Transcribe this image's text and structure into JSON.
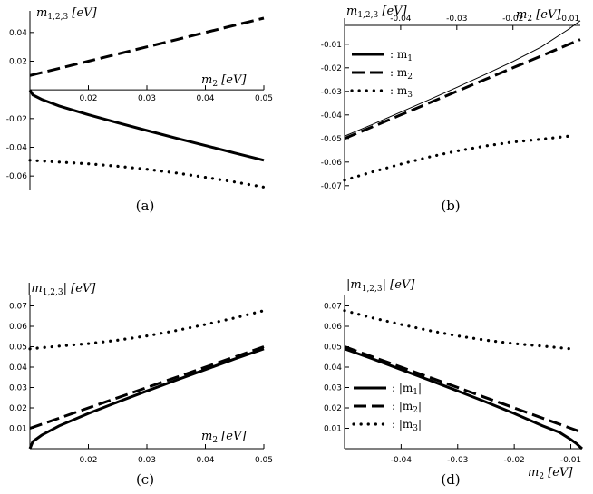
{
  "chart_data": [
    {
      "type": "line",
      "panel": "a",
      "caption": "(a)",
      "ylabel": "m_{1,2,3} [eV]",
      "xlabel": "m_2 [eV]",
      "xlim": [
        0.01,
        0.05
      ],
      "ylim": [
        -0.07,
        0.05
      ],
      "xticks": [
        "0.02",
        "0.03",
        "0.04",
        "0.05"
      ],
      "yticks": [
        "0.04",
        "0.02",
        "-0.02",
        "-0.04",
        "-0.06"
      ],
      "series": [
        {
          "style": "dashed",
          "x": [
            0.01,
            0.015,
            0.02,
            0.025,
            0.03,
            0.035,
            0.04,
            0.045,
            0.05
          ],
          "y": [
            0.01,
            0.015,
            0.02,
            0.025,
            0.03,
            0.035,
            0.04,
            0.045,
            0.05
          ]
        },
        {
          "style": "solid",
          "x": [
            0.01,
            0.0105,
            0.012,
            0.015,
            0.02,
            0.025,
            0.03,
            0.035,
            0.04,
            0.045,
            0.05
          ],
          "y": [
            0.0,
            -0.0035,
            -0.0066,
            -0.0112,
            -0.0173,
            -0.0229,
            -0.0283,
            -0.0336,
            -0.0388,
            -0.044,
            -0.049
          ]
        },
        {
          "style": "dotted",
          "x": [
            0.01,
            0.015,
            0.02,
            0.025,
            0.03,
            0.035,
            0.04,
            0.045,
            0.05
          ],
          "y": [
            -0.049,
            -0.0503,
            -0.0515,
            -0.0532,
            -0.0553,
            -0.0579,
            -0.0609,
            -0.0641,
            -0.0677
          ]
        }
      ]
    },
    {
      "type": "line",
      "panel": "b",
      "caption": "(b)",
      "ylabel": "m_{1,2,3} [eV]",
      "xlabel": "m_2 [eV]",
      "xlim": [
        -0.05,
        -0.008
      ],
      "ylim": [
        -0.072,
        -0.002
      ],
      "xticks": [
        "-0.04",
        "-0.03",
        "-0.02",
        "-0.01"
      ],
      "yticks": [
        "-0.01",
        "-0.02",
        "-0.03",
        "-0.04",
        "-0.05",
        "-0.06",
        "-0.07"
      ],
      "legend": [
        {
          "style": "solid",
          "label": ": m_1"
        },
        {
          "style": "dashed",
          "label": ": m_2"
        },
        {
          "style": "dotted",
          "label": ": m_3"
        }
      ],
      "series": [
        {
          "style": "thin",
          "x": [
            -0.05,
            -0.045,
            -0.04,
            -0.035,
            -0.03,
            -0.025,
            -0.02,
            -0.015,
            -0.01,
            -0.008
          ],
          "y": [
            -0.049,
            -0.044,
            -0.0388,
            -0.0336,
            -0.0283,
            -0.0229,
            -0.0173,
            -0.0112,
            -0.0035,
            0.0
          ]
        },
        {
          "style": "dashed",
          "x": [
            -0.05,
            -0.045,
            -0.04,
            -0.035,
            -0.03,
            -0.025,
            -0.02,
            -0.015,
            -0.01,
            -0.008
          ],
          "y": [
            -0.05,
            -0.045,
            -0.04,
            -0.035,
            -0.03,
            -0.025,
            -0.02,
            -0.015,
            -0.01,
            -0.008
          ]
        },
        {
          "style": "dotted",
          "x": [
            -0.05,
            -0.045,
            -0.04,
            -0.035,
            -0.03,
            -0.025,
            -0.02,
            -0.015,
            -0.01
          ],
          "y": [
            -0.0677,
            -0.0641,
            -0.0609,
            -0.0579,
            -0.0553,
            -0.0532,
            -0.0515,
            -0.0503,
            -0.049
          ]
        }
      ]
    },
    {
      "type": "line",
      "panel": "c",
      "caption": "(c)",
      "ylabel": "|m_{1,2,3}| [eV]",
      "xlabel": "m_2 [eV]",
      "xlim": [
        0.01,
        0.05
      ],
      "ylim": [
        0.0,
        0.072
      ],
      "xticks": [
        "0.02",
        "0.03",
        "0.04",
        "0.05"
      ],
      "yticks": [
        "0.07",
        "0.06",
        "0.05",
        "0.04",
        "0.03",
        "0.02",
        "0.01"
      ],
      "series": [
        {
          "style": "dotted",
          "x": [
            0.01,
            0.015,
            0.02,
            0.025,
            0.03,
            0.035,
            0.04,
            0.045,
            0.05
          ],
          "y": [
            0.049,
            0.0503,
            0.0515,
            0.0532,
            0.0553,
            0.0579,
            0.0609,
            0.0641,
            0.0677
          ]
        },
        {
          "style": "dashed",
          "x": [
            0.01,
            0.015,
            0.02,
            0.025,
            0.03,
            0.035,
            0.04,
            0.045,
            0.05
          ],
          "y": [
            0.01,
            0.015,
            0.02,
            0.025,
            0.03,
            0.035,
            0.04,
            0.045,
            0.05
          ]
        },
        {
          "style": "solid",
          "x": [
            0.01,
            0.0105,
            0.012,
            0.015,
            0.02,
            0.025,
            0.03,
            0.035,
            0.04,
            0.045,
            0.05
          ],
          "y": [
            0.0,
            0.0035,
            0.0066,
            0.0112,
            0.0173,
            0.0229,
            0.0283,
            0.0336,
            0.0388,
            0.044,
            0.049
          ]
        }
      ]
    },
    {
      "type": "line",
      "panel": "d",
      "caption": "(d)",
      "ylabel": "|m_{1,2,3}| [eV]",
      "xlabel": "m_2 [eV]",
      "xlim": [
        -0.05,
        -0.008
      ],
      "ylim": [
        0.0,
        0.072
      ],
      "xticks": [
        "-0.04",
        "-0.03",
        "-0.02",
        "-0.01"
      ],
      "yticks": [
        "0.07",
        "0.06",
        "0.05",
        "0.04",
        "0.03",
        "0.02",
        "0.01"
      ],
      "legend": [
        {
          "style": "solid",
          "label": ": |m_1|"
        },
        {
          "style": "dashed",
          "label": ": |m_2|"
        },
        {
          "style": "dotted",
          "label": ": |m_3|"
        }
      ],
      "series": [
        {
          "style": "dotted",
          "x": [
            -0.05,
            -0.045,
            -0.04,
            -0.035,
            -0.03,
            -0.025,
            -0.02,
            -0.015,
            -0.01
          ],
          "y": [
            0.0677,
            0.0641,
            0.0609,
            0.0579,
            0.0553,
            0.0532,
            0.0515,
            0.0503,
            0.049
          ]
        },
        {
          "style": "dashed",
          "x": [
            -0.05,
            -0.045,
            -0.04,
            -0.035,
            -0.03,
            -0.025,
            -0.02,
            -0.015,
            -0.01,
            -0.008
          ],
          "y": [
            0.05,
            0.045,
            0.04,
            0.035,
            0.03,
            0.025,
            0.02,
            0.015,
            0.01,
            0.008
          ]
        },
        {
          "style": "solid",
          "x": [
            -0.05,
            -0.045,
            -0.04,
            -0.035,
            -0.03,
            -0.025,
            -0.02,
            -0.015,
            -0.012,
            -0.01,
            -0.009,
            -0.0085,
            -0.008
          ],
          "y": [
            0.049,
            0.044,
            0.0388,
            0.0336,
            0.0283,
            0.0229,
            0.0173,
            0.0112,
            0.008,
            0.0045,
            0.0025,
            0.0012,
            0.0
          ]
        }
      ]
    }
  ]
}
